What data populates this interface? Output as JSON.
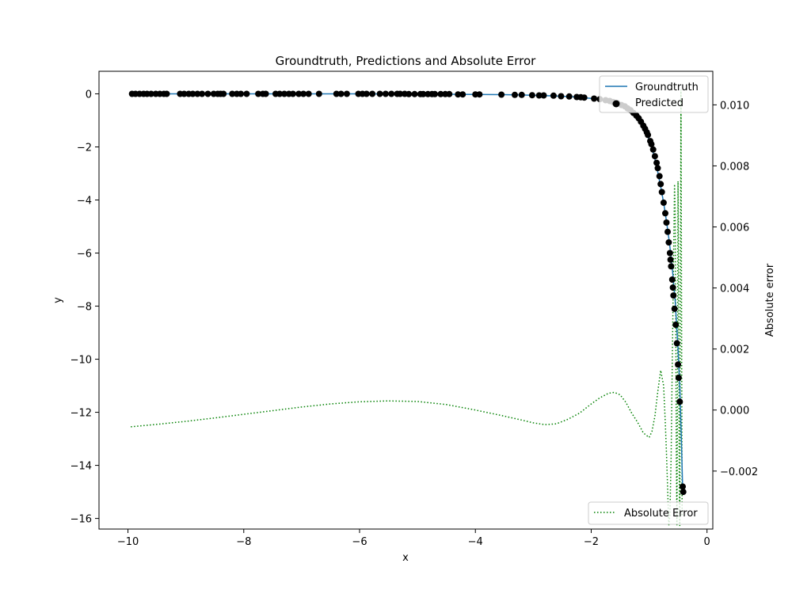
{
  "chart_data": {
    "type": "line",
    "title": "Groundtruth, Predictions and Absolute Error",
    "xlabel": "x",
    "ylabel": "y",
    "y2label": "Absolute error",
    "xlim": [
      -10.5,
      0.1
    ],
    "ylim": [
      -16.4,
      0.85
    ],
    "y2lim": [
      -0.0039,
      0.0111
    ],
    "xticks": [
      -10,
      -8,
      -6,
      -4,
      -2,
      0
    ],
    "yticks": [
      0,
      -2,
      -4,
      -6,
      -8,
      -10,
      -12,
      -14,
      -16
    ],
    "y2ticks": [
      0.01,
      0.008,
      0.006,
      0.004,
      0.002,
      0.0,
      -0.002
    ],
    "xtick_labels": [
      "−10",
      "−8",
      "−6",
      "−4",
      "−2",
      "0"
    ],
    "ytick_labels": [
      "0",
      "−2",
      "−4",
      "−6",
      "−8",
      "−10",
      "−12",
      "−14",
      "−16"
    ],
    "y2tick_labels": [
      "0.010",
      "0.008",
      "0.006",
      "0.004",
      "0.002",
      "0.000",
      "−0.002"
    ],
    "grid": false,
    "legend_top": {
      "placement": "top-right",
      "entries": [
        "Groundtruth",
        "Predicted"
      ]
    },
    "legend_bottom": {
      "placement": "bottom-right",
      "entries": [
        "Absolute Error"
      ]
    },
    "colors": {
      "groundtruth": "#1f77b4",
      "predicted": "#000000",
      "error": "#008000"
    },
    "series": [
      {
        "name": "Groundtruth",
        "axis": "left",
        "style": "solid",
        "x": [
          -9.95,
          -9.0,
          -8.0,
          -7.0,
          -6.0,
          -5.0,
          -4.0,
          -3.5,
          -3.0,
          -2.6,
          -2.3,
          -2.0,
          -1.8,
          -1.6,
          -1.4,
          -1.3,
          -1.2,
          -1.1,
          -1.0,
          -0.95,
          -0.9,
          -0.85,
          -0.8,
          -0.75,
          -0.7,
          -0.65,
          -0.6,
          -0.55,
          -0.5,
          -0.47,
          -0.44,
          -0.42
        ],
        "y": [
          0.0,
          0.0,
          0.0,
          0.0,
          0.0,
          -0.01,
          -0.02,
          -0.03,
          -0.05,
          -0.08,
          -0.11,
          -0.17,
          -0.22,
          -0.33,
          -0.52,
          -0.68,
          -0.9,
          -1.25,
          -1.72,
          -2.05,
          -2.45,
          -2.95,
          -3.5,
          -4.1,
          -4.8,
          -5.6,
          -6.55,
          -7.8,
          -9.6,
          -11.0,
          -13.2,
          -15.0
        ]
      },
      {
        "name": "Predicted",
        "axis": "left",
        "style": "scatter",
        "x": [
          -9.93,
          -9.87,
          -9.8,
          -9.73,
          -9.67,
          -9.6,
          -9.52,
          -9.45,
          -9.38,
          -9.33,
          -9.1,
          -9.03,
          -8.95,
          -8.88,
          -8.8,
          -8.72,
          -8.62,
          -8.52,
          -8.45,
          -8.4,
          -8.35,
          -8.2,
          -8.12,
          -8.05,
          -7.95,
          -7.75,
          -7.67,
          -7.62,
          -7.45,
          -7.38,
          -7.3,
          -7.22,
          -7.15,
          -7.05,
          -6.97,
          -6.88,
          -6.7,
          -6.4,
          -6.32,
          -6.22,
          -6.02,
          -5.95,
          -5.88,
          -5.78,
          -5.65,
          -5.55,
          -5.45,
          -5.35,
          -5.3,
          -5.22,
          -5.15,
          -5.05,
          -4.95,
          -4.9,
          -4.82,
          -4.75,
          -4.7,
          -4.6,
          -4.52,
          -4.45,
          -4.3,
          -4.22,
          -4.0,
          -3.93,
          -3.55,
          -3.32,
          -3.2,
          -3.02,
          -2.9,
          -2.82,
          -2.65,
          -2.52,
          -2.38,
          -2.25,
          -2.18,
          -2.12,
          -1.95,
          -1.85,
          -1.75,
          -1.68,
          -1.62,
          -1.55,
          -1.48,
          -1.42,
          -1.37,
          -1.32,
          -1.27,
          -1.22,
          -1.18,
          -1.14,
          -1.1,
          -1.07,
          -1.04,
          -1.02,
          -0.98,
          -0.96,
          -0.93,
          -0.9,
          -0.87,
          -0.85,
          -0.82,
          -0.8,
          -0.78,
          -0.75,
          -0.72,
          -0.7,
          -0.68,
          -0.66,
          -0.64,
          -0.63,
          -0.62,
          -0.6,
          -0.59,
          -0.58,
          -0.56,
          -0.54,
          -0.52,
          -0.5,
          -0.49,
          -0.47,
          -0.42,
          -0.41
        ],
        "y": [
          0.0,
          0.0,
          0.0,
          0.0,
          0.0,
          0.0,
          0.0,
          0.0,
          0.0,
          0.0,
          0.0,
          0.0,
          0.0,
          0.0,
          0.0,
          0.0,
          0.0,
          0.0,
          0.0,
          0.0,
          0.0,
          0.0,
          0.0,
          0.0,
          0.0,
          0.0,
          0.0,
          0.0,
          0.0,
          0.0,
          0.0,
          0.0,
          0.0,
          0.0,
          0.0,
          0.0,
          0.0,
          0.0,
          0.0,
          0.0,
          0.0,
          0.0,
          0.0,
          0.0,
          0.0,
          0.0,
          0.0,
          0.0,
          0.0,
          0.0,
          -0.01,
          -0.01,
          -0.01,
          -0.01,
          -0.01,
          -0.01,
          -0.01,
          -0.01,
          -0.01,
          -0.01,
          -0.02,
          -0.02,
          -0.02,
          -0.02,
          -0.03,
          -0.04,
          -0.04,
          -0.05,
          -0.06,
          -0.06,
          -0.07,
          -0.09,
          -0.1,
          -0.12,
          -0.13,
          -0.14,
          -0.18,
          -0.2,
          -0.24,
          -0.27,
          -0.31,
          -0.35,
          -0.42,
          -0.47,
          -0.55,
          -0.62,
          -0.72,
          -0.82,
          -0.92,
          -1.05,
          -1.2,
          -1.32,
          -1.45,
          -1.55,
          -1.78,
          -1.9,
          -2.1,
          -2.35,
          -2.6,
          -2.8,
          -3.1,
          -3.4,
          -3.7,
          -4.1,
          -4.5,
          -4.85,
          -5.2,
          -5.6,
          -6.0,
          -6.25,
          -6.5,
          -7.0,
          -7.3,
          -7.6,
          -8.1,
          -8.7,
          -9.4,
          -10.2,
          -10.7,
          -11.6,
          -14.8,
          -15.0
        ]
      },
      {
        "name": "Absolute Error",
        "axis": "right",
        "style": "dotted",
        "x": [
          -9.95,
          -9.5,
          -9.0,
          -8.5,
          -8.0,
          -7.5,
          -7.0,
          -6.5,
          -6.0,
          -5.5,
          -5.0,
          -4.5,
          -4.0,
          -3.5,
          -3.2,
          -3.0,
          -2.8,
          -2.6,
          -2.4,
          -2.2,
          -2.0,
          -1.85,
          -1.7,
          -1.6,
          -1.5,
          -1.4,
          -1.3,
          -1.2,
          -1.1,
          -1.0,
          -0.95,
          -0.9,
          -0.85,
          -0.8,
          -0.75,
          -0.72,
          -0.7,
          -0.68,
          -0.66,
          -0.64,
          -0.62,
          -0.6,
          -0.58,
          -0.56,
          -0.55,
          -0.54,
          -0.53,
          -0.52,
          -0.51,
          -0.5,
          -0.49,
          -0.48,
          -0.47,
          -0.46,
          -0.45,
          -0.44,
          -0.43
        ],
        "y": [
          -0.00055,
          -0.00047,
          -0.00037,
          -0.00026,
          -0.00014,
          -2e-05,
          0.0001,
          0.0002,
          0.00027,
          0.0003,
          0.00028,
          0.00018,
          0.0,
          -0.0002,
          -0.00033,
          -0.00042,
          -0.00048,
          -0.00045,
          -0.0003,
          -0.0001,
          0.0002,
          0.0004,
          0.00055,
          0.00058,
          0.0005,
          0.00025,
          -0.0001,
          -0.0004,
          -0.00075,
          -0.0009,
          -0.0007,
          -0.0002,
          0.0006,
          0.0013,
          0.0008,
          -0.0004,
          -0.0014,
          -0.0026,
          -0.0038,
          -0.0034,
          -0.0015,
          0.0015,
          0.0045,
          0.0074,
          0.0065,
          0.003,
          -0.0015,
          -0.0038,
          0.0005,
          0.0075,
          0.0045,
          -0.002,
          -0.0038,
          0.003,
          0.0105,
          0.004,
          -0.0035
        ]
      }
    ]
  }
}
